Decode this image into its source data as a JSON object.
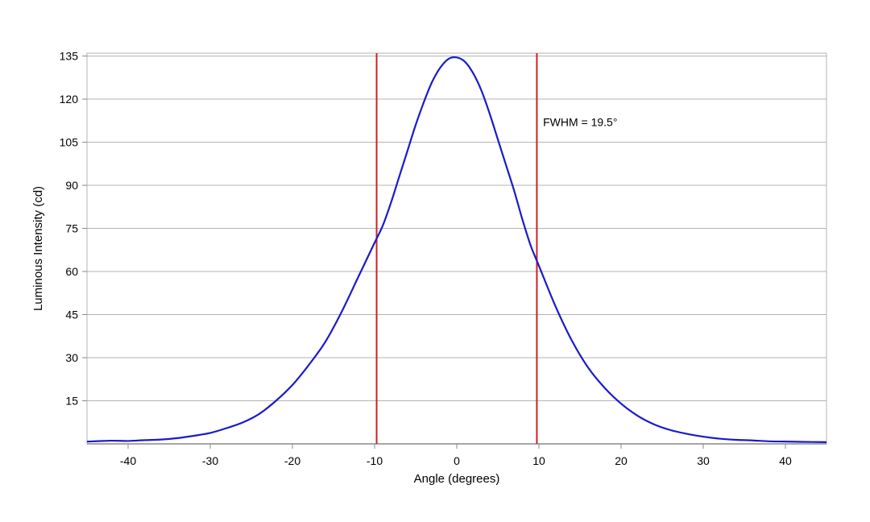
{
  "chart_data": {
    "type": "line",
    "title": "",
    "xlabel": "Angle (degrees)",
    "ylabel": "Luminous Intensity (cd)",
    "xlim": [
      -45,
      45
    ],
    "ylim": [
      0,
      136
    ],
    "x_ticks": [
      -40,
      -30,
      -20,
      -10,
      0,
      10,
      20,
      30,
      40
    ],
    "y_ticks": [
      15,
      30,
      45,
      60,
      75,
      90,
      105,
      120,
      135
    ],
    "grid": {
      "horizontal": true,
      "vertical": false
    },
    "legend": "none",
    "series": [
      {
        "color": "#1a1acc",
        "x": [
          -45,
          -42,
          -40,
          -38,
          -36,
          -34,
          -32,
          -30,
          -28,
          -26,
          -24,
          -22,
          -20,
          -18,
          -16,
          -14,
          -12,
          -10,
          -9,
          -8,
          -7,
          -6,
          -5,
          -4,
          -3,
          -2,
          -1,
          0,
          1,
          2,
          3,
          4,
          5,
          6,
          7,
          8,
          9,
          10,
          12,
          14,
          16,
          18,
          20,
          22,
          24,
          26,
          28,
          30,
          32,
          34,
          36,
          38,
          40,
          42,
          45
        ],
        "y": [
          0.8,
          1.1,
          1.0,
          1.3,
          1.5,
          2.0,
          2.8,
          3.8,
          5.5,
          7.5,
          10.5,
          15,
          20.5,
          27.5,
          35.5,
          46,
          58,
          70,
          76,
          84,
          93,
          102,
          111,
          119,
          126,
          131,
          134,
          134.5,
          133,
          129,
          123,
          115,
          106,
          97,
          88,
          78,
          69,
          62,
          48,
          36,
          26.5,
          19.5,
          14,
          9.8,
          6.8,
          4.8,
          3.5,
          2.5,
          1.8,
          1.4,
          1.2,
          0.9,
          0.8,
          0.7,
          0.6
        ]
      }
    ],
    "markers": [
      {
        "x": -9.75,
        "color": "#cc2222"
      },
      {
        "x": 9.75,
        "color": "#cc2222"
      }
    ],
    "annotations": [
      {
        "text": "FWHM = 19.5°",
        "x": 10.5,
        "y": 112
      }
    ],
    "colors": {
      "grid": "#b3b3b3",
      "axis": "#888888",
      "frame": "#b3b3b3"
    }
  }
}
